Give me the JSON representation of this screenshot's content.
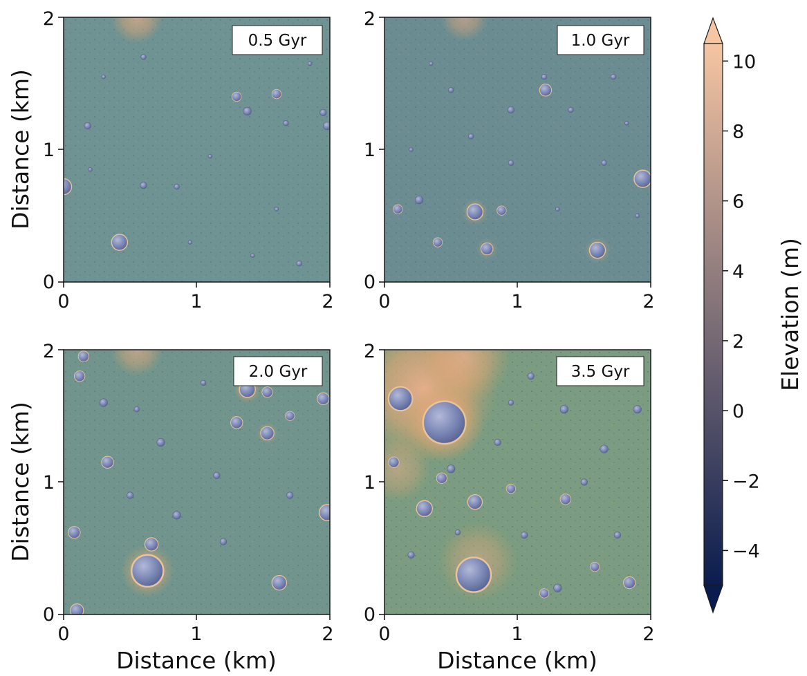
{
  "chart_data": {
    "type": "heatmap",
    "xlabel": "Distance (km)",
    "ylabel": "Distance (km)",
    "xlim": [
      0,
      2
    ],
    "ylim": [
      0,
      2
    ],
    "ticks": [
      "0",
      "1",
      "2"
    ],
    "colorbar": {
      "label": "Elevation (m)",
      "range": [
        -5,
        10.5
      ],
      "ticks": [
        "10",
        "8",
        "6",
        "4",
        "2",
        "0",
        "−2",
        "−4"
      ],
      "tick_values": [
        10,
        8,
        6,
        4,
        2,
        0,
        -2,
        -4
      ],
      "extend": "both",
      "colors": [
        "#0a1c4e",
        "#244a7a",
        "#3e6b80",
        "#5b8784",
        "#7c9b72",
        "#a9a958",
        "#d2a25a",
        "#eeae82",
        "#f6c5a2"
      ]
    },
    "panels": [
      {
        "label": "0.5 Gyr",
        "craters": [
          [
            0.42,
            0.3,
            0.06
          ],
          [
            0.0,
            0.72,
            0.06
          ],
          [
            1.3,
            1.4,
            0.035
          ],
          [
            1.6,
            1.42,
            0.035
          ],
          [
            1.38,
            1.29,
            0.03
          ],
          [
            1.95,
            1.28,
            0.025
          ],
          [
            1.98,
            1.18,
            0.03
          ],
          [
            0.6,
            1.7,
            0.02
          ],
          [
            0.18,
            1.18,
            0.025
          ],
          [
            0.6,
            0.73,
            0.025
          ],
          [
            0.85,
            0.72,
            0.02
          ],
          [
            1.67,
            1.2,
            0.02
          ],
          [
            1.77,
            0.14,
            0.02
          ],
          [
            1.42,
            0.2,
            0.015
          ],
          [
            0.95,
            0.3,
            0.015
          ],
          [
            0.2,
            0.85,
            0.015
          ],
          [
            1.1,
            0.95,
            0.015
          ],
          [
            1.6,
            0.55,
            0.015
          ],
          [
            0.3,
            1.55,
            0.015
          ],
          [
            1.85,
            1.65,
            0.015
          ]
        ],
        "rims": [
          [
            0.55,
            2.0,
            0.2,
            0.65
          ]
        ]
      },
      {
        "label": "1.0 Gyr",
        "craters": [
          [
            0.68,
            0.53,
            0.06
          ],
          [
            1.6,
            0.24,
            0.06
          ],
          [
            0.77,
            0.25,
            0.045
          ],
          [
            0.1,
            0.55,
            0.035
          ],
          [
            0.4,
            0.3,
            0.035
          ],
          [
            0.88,
            0.54,
            0.035
          ],
          [
            0.26,
            0.62,
            0.03
          ],
          [
            1.21,
            1.45,
            0.045
          ],
          [
            1.94,
            0.78,
            0.065
          ],
          [
            1.2,
            1.55,
            0.02
          ],
          [
            0.95,
            1.3,
            0.025
          ],
          [
            0.65,
            1.1,
            0.02
          ],
          [
            0.95,
            0.9,
            0.02
          ],
          [
            1.4,
            1.3,
            0.02
          ],
          [
            1.72,
            1.55,
            0.02
          ],
          [
            1.65,
            0.9,
            0.02
          ],
          [
            0.5,
            1.45,
            0.02
          ],
          [
            0.2,
            1.0,
            0.015
          ],
          [
            1.9,
            0.5,
            0.015
          ],
          [
            1.3,
            0.55,
            0.015
          ],
          [
            1.82,
            1.2,
            0.015
          ],
          [
            0.35,
            1.65,
            0.015
          ]
        ],
        "rims": [
          [
            0.6,
            2.0,
            0.18,
            0.55
          ],
          [
            0.68,
            0.53,
            0.1,
            0.45
          ],
          [
            1.6,
            0.24,
            0.1,
            0.4
          ],
          [
            0.77,
            0.25,
            0.08,
            0.35
          ]
        ]
      },
      {
        "label": "2.0 Gyr",
        "craters": [
          [
            0.63,
            0.33,
            0.12
          ],
          [
            0.66,
            0.53,
            0.05
          ],
          [
            1.38,
            1.7,
            0.06
          ],
          [
            1.53,
            1.68,
            0.04
          ],
          [
            1.53,
            1.37,
            0.05
          ],
          [
            1.95,
            1.63,
            0.045
          ],
          [
            1.3,
            1.45,
            0.045
          ],
          [
            1.7,
            1.5,
            0.035
          ],
          [
            1.98,
            0.77,
            0.06
          ],
          [
            1.62,
            0.24,
            0.055
          ],
          [
            0.33,
            1.15,
            0.045
          ],
          [
            0.12,
            1.8,
            0.04
          ],
          [
            0.73,
            1.3,
            0.03
          ],
          [
            0.5,
            0.9,
            0.025
          ],
          [
            0.85,
            0.75,
            0.03
          ],
          [
            1.15,
            1.05,
            0.025
          ],
          [
            1.2,
            0.55,
            0.025
          ],
          [
            0.08,
            0.62,
            0.045
          ],
          [
            0.3,
            1.6,
            0.03
          ],
          [
            0.1,
            0.03,
            0.05
          ],
          [
            1.7,
            0.9,
            0.025
          ],
          [
            0.15,
            1.95,
            0.04
          ],
          [
            1.05,
            1.75,
            0.02
          ],
          [
            0.55,
            1.55,
            0.02
          ]
        ],
        "rims": [
          [
            0.55,
            2.0,
            0.2,
            0.6
          ],
          [
            0.63,
            0.33,
            0.2,
            0.7
          ],
          [
            1.38,
            1.7,
            0.1,
            0.6
          ],
          [
            1.53,
            1.37,
            0.08,
            0.45
          ]
        ]
      },
      {
        "label": "3.5 Gyr",
        "craters": [
          [
            0.45,
            1.45,
            0.16
          ],
          [
            0.12,
            1.63,
            0.09
          ],
          [
            0.67,
            0.3,
            0.13
          ],
          [
            0.07,
            1.15,
            0.04
          ],
          [
            0.3,
            0.8,
            0.06
          ],
          [
            0.68,
            0.85,
            0.055
          ],
          [
            0.43,
            1.03,
            0.04
          ],
          [
            0.5,
            1.1,
            0.03
          ],
          [
            0.95,
            0.95,
            0.035
          ],
          [
            1.36,
            0.87,
            0.04
          ],
          [
            1.58,
            0.36,
            0.035
          ],
          [
            1.2,
            0.16,
            0.035
          ],
          [
            1.3,
            0.2,
            0.03
          ],
          [
            1.84,
            0.24,
            0.045
          ],
          [
            1.65,
            1.25,
            0.03
          ],
          [
            1.35,
            1.55,
            0.03
          ],
          [
            1.1,
            1.8,
            0.025
          ],
          [
            1.9,
            1.55,
            0.03
          ],
          [
            0.85,
            1.3,
            0.025
          ],
          [
            1.75,
            0.6,
            0.025
          ],
          [
            0.2,
            0.45,
            0.025
          ],
          [
            1.05,
            0.6,
            0.025
          ],
          [
            0.55,
            0.62,
            0.02
          ],
          [
            1.5,
            1.0,
            0.025
          ],
          [
            0.95,
            1.6,
            0.02
          ]
        ],
        "rims": [
          [
            0.3,
            1.7,
            0.55,
            0.9
          ],
          [
            0.45,
            1.45,
            0.3,
            0.8
          ],
          [
            0.7,
            0.4,
            0.3,
            0.5
          ],
          [
            0.6,
            1.95,
            0.35,
            0.7
          ],
          [
            0.1,
            1.1,
            0.25,
            0.5
          ]
        ]
      }
    ]
  }
}
